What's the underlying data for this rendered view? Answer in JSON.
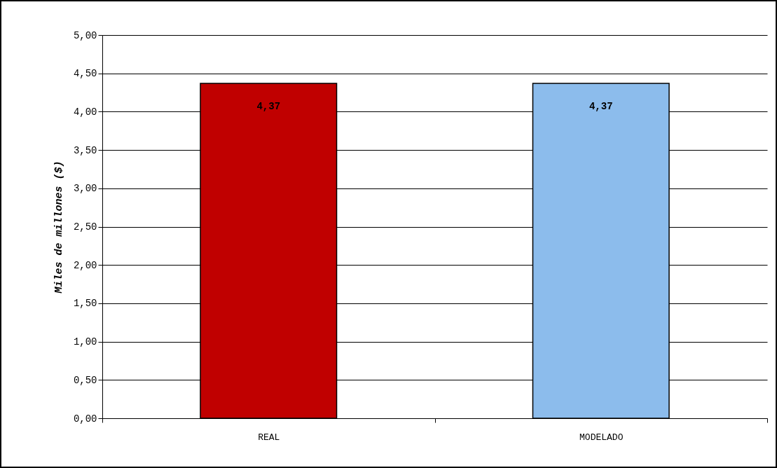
{
  "chart_data": {
    "type": "bar",
    "ylabel": "Miles de millones ($)",
    "categories": [
      "REAL",
      "MODELADO"
    ],
    "values": [
      4.37,
      4.37
    ],
    "colors": [
      "#c00000",
      "#8cbcec"
    ],
    "value_labels": [
      "4,37",
      "4,37"
    ],
    "ylim": [
      0,
      5
    ],
    "yticks": [
      {
        "value": 0,
        "label": "0,00"
      },
      {
        "value": 0.5,
        "label": "0,50"
      },
      {
        "value": 1,
        "label": "1,00"
      },
      {
        "value": 1.5,
        "label": "1,50"
      },
      {
        "value": 2,
        "label": "2,00"
      },
      {
        "value": 2.5,
        "label": "2,50"
      },
      {
        "value": 3,
        "label": "3,00"
      },
      {
        "value": 3.5,
        "label": "3,50"
      },
      {
        "value": 4,
        "label": "4,00"
      },
      {
        "value": 4.5,
        "label": "4,50"
      },
      {
        "value": 5,
        "label": "5,00"
      }
    ],
    "grid": "y"
  }
}
